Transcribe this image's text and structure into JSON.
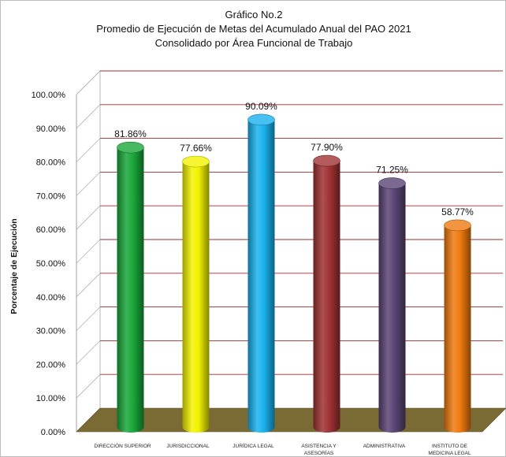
{
  "chart_data": {
    "type": "bar",
    "title": "Gráfico No.2",
    "subtitle_lines": [
      "Promedio de Ejecución de Metas del Acumulado Anual del PAO 2021",
      "Consolidado por Área Funcional de Trabajo"
    ],
    "ylabel": "Porcentaje de Ejecución",
    "xlabel": "",
    "ylim": [
      0,
      100
    ],
    "yticks": [
      "0.00%",
      "10.00%",
      "20.00%",
      "30.00%",
      "40.00%",
      "50.00%",
      "60.00%",
      "70.00%",
      "80.00%",
      "90.00%",
      "100.00%"
    ],
    "categories": [
      [
        "DIRECCIÓN SUPERIOR"
      ],
      [
        "JURISDICCIONAL"
      ],
      [
        "JURÍDICA LEGAL"
      ],
      [
        "ASISTENCIA Y",
        "ASESORÍAS"
      ],
      [
        "ADMINISTRATIVA"
      ],
      [
        "INSTITUTO DE",
        "MEDICINA LEGAL"
      ]
    ],
    "values": [
      81.86,
      77.66,
      90.09,
      77.9,
      71.25,
      58.77
    ],
    "value_labels": [
      "81.86%",
      "77.66%",
      "90.09%",
      "77.90%",
      "71.25%",
      "58.77%"
    ],
    "colors": [
      "#1aa83a",
      "#f2f200",
      "#1ab2ee",
      "#a03234",
      "#5b4475",
      "#f07a10"
    ],
    "grid": true,
    "gridline_color": "#a52a2a",
    "floor_color": "#7a6a33",
    "legend": "none"
  }
}
